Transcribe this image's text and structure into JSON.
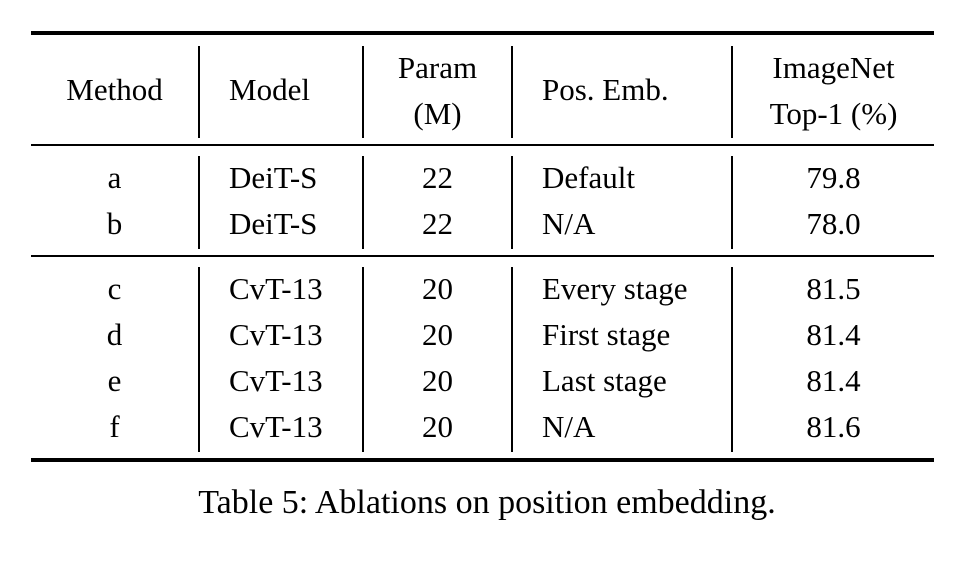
{
  "table": {
    "headers": {
      "method": "Method",
      "model": "Model",
      "param_line1": "Param",
      "param_line2": "(M)",
      "pos_emb": "Pos. Emb.",
      "top1_line1": "ImageNet",
      "top1_line2": "Top-1 (%)"
    },
    "rows": [
      {
        "method": "a",
        "model": "DeiT-S",
        "param": "22",
        "pos_emb": "Default",
        "top1": "79.8"
      },
      {
        "method": "b",
        "model": "DeiT-S",
        "param": "22",
        "pos_emb": "N/A",
        "top1": "78.0"
      },
      {
        "method": "c",
        "model": "CvT-13",
        "param": "20",
        "pos_emb": "Every stage",
        "top1": "81.5"
      },
      {
        "method": "d",
        "model": "CvT-13",
        "param": "20",
        "pos_emb": "First stage",
        "top1": "81.4"
      },
      {
        "method": "e",
        "model": "CvT-13",
        "param": "20",
        "pos_emb": "Last stage",
        "top1": "81.4"
      },
      {
        "method": "f",
        "model": "CvT-13",
        "param": "20",
        "pos_emb": "N/A",
        "top1": "81.6"
      }
    ]
  },
  "caption": "Table 5: Ablations on position embedding."
}
